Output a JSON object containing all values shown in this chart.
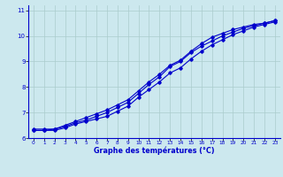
{
  "xlabel": "Graphe des températures (°C)",
  "bg_color": "#cce8ee",
  "grid_color": "#aacccc",
  "line_color": "#0000cc",
  "xlim": [
    -0.5,
    23.5
  ],
  "ylim": [
    6,
    11.2
  ],
  "yticks": [
    6,
    7,
    8,
    9,
    10,
    11
  ],
  "xticks": [
    0,
    1,
    2,
    3,
    4,
    5,
    6,
    7,
    8,
    9,
    10,
    11,
    12,
    13,
    14,
    15,
    16,
    17,
    18,
    19,
    20,
    21,
    22,
    23
  ],
  "series1_x": [
    0,
    1,
    2,
    3,
    4,
    5,
    6,
    7,
    8,
    9,
    10,
    11,
    12,
    13,
    14,
    15,
    16,
    17,
    18,
    19,
    20,
    21,
    22,
    23
  ],
  "series1_y": [
    6.3,
    6.3,
    6.3,
    6.4,
    6.55,
    6.65,
    6.75,
    6.85,
    7.05,
    7.25,
    7.6,
    7.9,
    8.2,
    8.55,
    8.75,
    9.1,
    9.4,
    9.65,
    9.85,
    10.05,
    10.2,
    10.35,
    10.45,
    10.55
  ],
  "series2_x": [
    0,
    1,
    2,
    3,
    4,
    5,
    6,
    7,
    8,
    9,
    10,
    11,
    12,
    13,
    14,
    15,
    16,
    17,
    18,
    19,
    20,
    21,
    22,
    23
  ],
  "series2_y": [
    6.35,
    6.35,
    6.35,
    6.45,
    6.6,
    6.7,
    6.85,
    7.0,
    7.2,
    7.4,
    7.75,
    8.1,
    8.4,
    8.8,
    9.0,
    9.35,
    9.6,
    9.8,
    10.0,
    10.15,
    10.3,
    10.4,
    10.5,
    10.6
  ],
  "series3_x": [
    0,
    1,
    2,
    3,
    4,
    5,
    6,
    7,
    8,
    9,
    10,
    11,
    12,
    13,
    14,
    15,
    16,
    17,
    18,
    19,
    20,
    21,
    22,
    23
  ],
  "series3_y": [
    6.3,
    6.3,
    6.35,
    6.5,
    6.65,
    6.8,
    6.95,
    7.1,
    7.3,
    7.5,
    7.85,
    8.2,
    8.5,
    8.85,
    9.05,
    9.4,
    9.7,
    9.95,
    10.1,
    10.25,
    10.35,
    10.45,
    10.5,
    10.6
  ]
}
